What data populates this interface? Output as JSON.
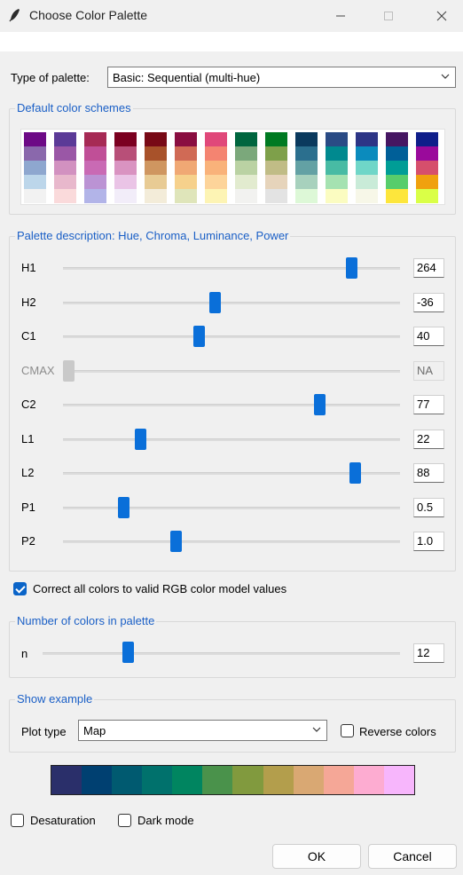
{
  "window": {
    "title": "Choose Color Palette"
  },
  "palette_type": {
    "label": "Type of palette:",
    "selected": "Basic: Sequential (multi-hue)"
  },
  "schemes": {
    "legend": "Default color schemes",
    "columns": [
      [
        "#6d0a86",
        "#8a68ac",
        "#8ea7cf",
        "#bcd6ea",
        "#f2f2f2"
      ],
      [
        "#5b3a97",
        "#9a57a6",
        "#d291c0",
        "#e8b8cc",
        "#fadadb"
      ],
      [
        "#a62a55",
        "#c04f97",
        "#c96ab4",
        "#bb93d4",
        "#b2b4e8"
      ],
      [
        "#7b0020",
        "#b84f78",
        "#d993c1",
        "#eac4e6",
        "#f2edf9"
      ],
      [
        "#780a16",
        "#a8522a",
        "#cf9660",
        "#e8cb94",
        "#f3ecd9"
      ],
      [
        "#8a0e41",
        "#d06a55",
        "#f0a874",
        "#f6d18c",
        "#dfe5ba"
      ],
      [
        "#e0487a",
        "#f48471",
        "#f9b27a",
        "#fdd49a",
        "#fdf4b4"
      ],
      [
        "#00663f",
        "#7ba87b",
        "#bad2a3",
        "#e2ebcf",
        "#f2f2f0"
      ],
      [
        "#007a22",
        "#7ea04a",
        "#c0bc86",
        "#e6d4bb",
        "#e3e3e3"
      ],
      [
        "#0b3a5e",
        "#2b6f8e",
        "#63a1a4",
        "#a7d1bd",
        "#ddf8d7"
      ],
      [
        "#2a4b85",
        "#00898f",
        "#48bba4",
        "#a5e2b1",
        "#fbfcc1"
      ],
      [
        "#2d3586",
        "#0b8bbd",
        "#6fd6c8",
        "#c9ebd8",
        "#f7f7e8"
      ],
      [
        "#461662",
        "#005f98",
        "#009d96",
        "#57cd6b",
        "#fde63c"
      ],
      [
        "#0f1e8a",
        "#9a0a9b",
        "#d64f6c",
        "#f0a10e",
        "#daff47"
      ]
    ]
  },
  "description": {
    "legend": "Palette description: Hue, Chroma, Luminance, Power",
    "sliders": [
      {
        "label": "H1",
        "value": "264",
        "level": 0.87
      },
      {
        "label": "H2",
        "value": "-36",
        "level": 0.45
      },
      {
        "label": "C1",
        "value": "40",
        "level": 0.4
      },
      {
        "label": "CMAX",
        "value": "NA",
        "level": 0.0,
        "disabled": true
      },
      {
        "label": "C2",
        "value": "77",
        "level": 0.77
      },
      {
        "label": "L1",
        "value": "22",
        "level": 0.22
      },
      {
        "label": "L2",
        "value": "88",
        "level": 0.88
      },
      {
        "label": "P1",
        "value": "0.5",
        "level": 0.17
      },
      {
        "label": "P2",
        "value": "1.0",
        "level": 0.33
      }
    ]
  },
  "correct_rgb": {
    "label": "Correct all colors to valid RGB color model values",
    "checked": true
  },
  "ncolors": {
    "legend": "Number of colors in palette",
    "label": "n",
    "value": "12",
    "level": 0.23
  },
  "example": {
    "legend": "Show example",
    "plot_type_label": "Plot type",
    "plot_type": "Map",
    "reverse_label": "Reverse colors",
    "reverse_checked": false
  },
  "palette_colors": [
    "#2a2f6a",
    "#004071",
    "#005a70",
    "#00716c",
    "#008560",
    "#4a924b",
    "#819a3e",
    "#b39e4c",
    "#d9a873",
    "#f5a797",
    "#fdacd1",
    "#f7b6fc"
  ],
  "options": {
    "desaturation": "Desaturation",
    "dark_mode": "Dark mode"
  },
  "buttons": {
    "ok": "OK",
    "cancel": "Cancel"
  }
}
